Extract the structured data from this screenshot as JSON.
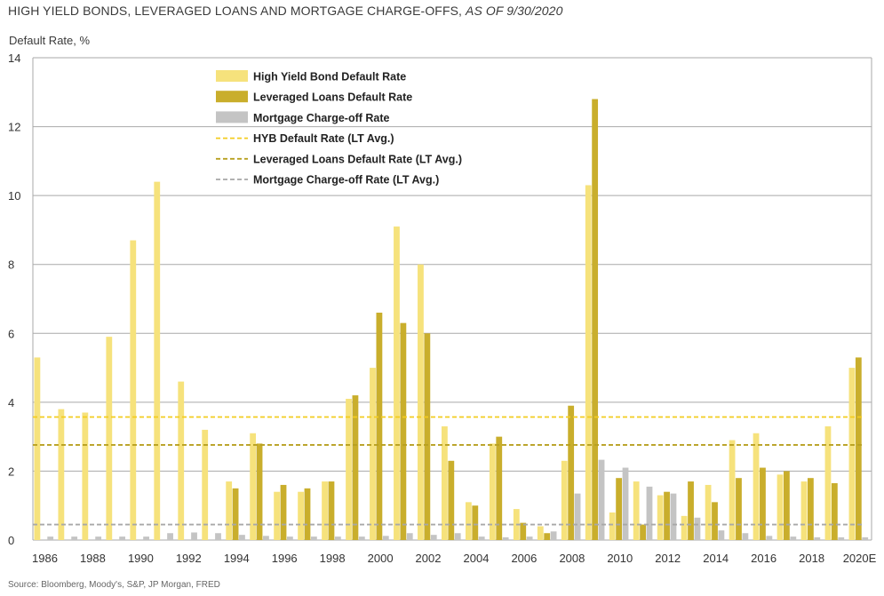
{
  "header": {
    "title_main": "HIGH YIELD BONDS, LEVERAGED LOANS AND MORTGAGE CHARGE-OFFS, ",
    "title_sub": "AS OF 9/30/2020"
  },
  "footer": {
    "source": "Source: Bloomberg, Moody's, S&P, JP Morgan, FRED"
  },
  "colors": {
    "hyb": "#f6e27c",
    "loans": "#c9ae2c",
    "mortgage": "#c4c4c4",
    "hyb_avg": "#f3cc20",
    "loans_avg": "#b8a020",
    "mortgage_avg": "#a8a8a8",
    "grid": "#a9a9a9"
  },
  "chart_data": {
    "type": "bar",
    "title": "HIGH YIELD BONDS, LEVERAGED LOANS AND MORTGAGE CHARGE-OFFS, AS OF 9/30/2020",
    "ylabel": "Default Rate, %",
    "xlabel": "",
    "ylim": [
      0,
      14
    ],
    "yticks": [
      0,
      2,
      4,
      6,
      8,
      10,
      12,
      14
    ],
    "grid": true,
    "legend_position": "top-left",
    "categories": [
      "1986",
      "1987",
      "1988",
      "1989",
      "1990",
      "1991",
      "1992",
      "1993",
      "1994",
      "1995",
      "1996",
      "1997",
      "1998",
      "1999",
      "2000",
      "2001",
      "2002",
      "2003",
      "2004",
      "2005",
      "2006",
      "2007",
      "2008",
      "2009",
      "2010",
      "2011",
      "2012",
      "2013",
      "2014",
      "2015",
      "2016",
      "2017",
      "2018",
      "2019",
      "2020E"
    ],
    "xtick_labels": [
      "1986",
      "",
      "1988",
      "",
      "1990",
      "",
      "1992",
      "",
      "1994",
      "",
      "1996",
      "",
      "1998",
      "",
      "2000",
      "",
      "2002",
      "",
      "2004",
      "",
      "2006",
      "",
      "2008",
      "",
      "2010",
      "",
      "2012",
      "",
      "2014",
      "",
      "2016",
      "",
      "2018",
      "",
      "2020E"
    ],
    "series": [
      {
        "name": "High Yield Bond Default Rate",
        "values": [
          5.3,
          3.8,
          3.7,
          5.9,
          8.7,
          10.4,
          4.6,
          3.2,
          1.7,
          3.1,
          1.4,
          1.4,
          1.7,
          4.1,
          5.0,
          9.1,
          8.0,
          3.3,
          1.1,
          2.8,
          0.9,
          0.4,
          2.3,
          10.3,
          0.8,
          1.7,
          1.3,
          0.7,
          1.6,
          2.9,
          3.1,
          1.9,
          1.7,
          3.3,
          5.0
        ]
      },
      {
        "name": "Leveraged Loans Default Rate",
        "values": [
          null,
          null,
          null,
          null,
          null,
          null,
          null,
          null,
          1.5,
          2.8,
          1.6,
          1.5,
          1.7,
          4.2,
          6.6,
          6.3,
          6.0,
          2.3,
          1.0,
          3.0,
          0.5,
          0.2,
          3.9,
          12.8,
          1.8,
          0.45,
          1.4,
          1.7,
          1.1,
          1.8,
          2.1,
          2.0,
          1.8,
          1.65,
          5.3
        ]
      },
      {
        "name": "Mortgage Charge-off Rate",
        "values": [
          0.1,
          0.1,
          0.1,
          0.1,
          0.1,
          0.2,
          0.22,
          0.2,
          0.15,
          0.12,
          0.1,
          0.1,
          0.1,
          0.1,
          0.12,
          0.2,
          0.15,
          0.2,
          0.1,
          0.08,
          0.1,
          0.25,
          1.35,
          2.33,
          2.1,
          1.55,
          1.35,
          0.65,
          0.28,
          0.2,
          0.12,
          0.1,
          0.08,
          0.08,
          0.08
        ]
      }
    ],
    "reference_lines": [
      {
        "name": "HYB Default Rate (LT Avg.)",
        "value": 3.57
      },
      {
        "name": "Leveraged Loans Default Rate (LT Avg.)",
        "value": 2.76
      },
      {
        "name": "Mortgage Charge-off Rate (LT Avg.)",
        "value": 0.45
      }
    ]
  }
}
